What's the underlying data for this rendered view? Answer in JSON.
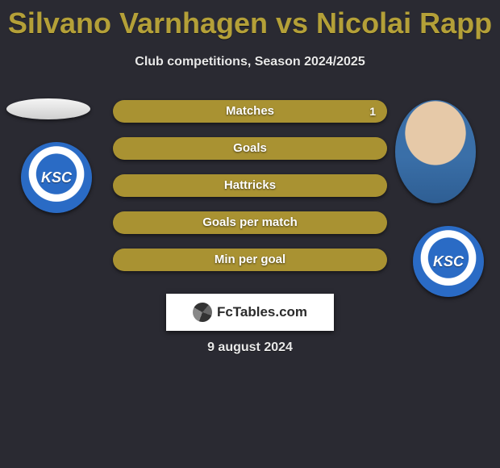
{
  "background_color": "#2a2a32",
  "accent_color": "#b4a038",
  "bar_color": "#a99232",
  "text_light": "#e8e8e8",
  "text_white": "#ffffff",
  "title": "Silvano Varnhagen vs Nicolai Rapp",
  "title_fontsize": 36,
  "subtitle": "Club competitions, Season 2024/2025",
  "subtitle_fontsize": 16,
  "players": {
    "left": {
      "name": "Silvano Varnhagen",
      "club_abbrev": "KSC"
    },
    "right": {
      "name": "Nicolai Rapp",
      "club_abbrev": "KSC"
    }
  },
  "stats": [
    {
      "label": "Matches",
      "right_value": "1"
    },
    {
      "label": "Goals",
      "right_value": ""
    },
    {
      "label": "Hattricks",
      "right_value": ""
    },
    {
      "label": "Goals per match",
      "right_value": ""
    },
    {
      "label": "Min per goal",
      "right_value": ""
    }
  ],
  "branding": "FcTables.com",
  "date": "9 august 2024",
  "date_fontsize": 16
}
